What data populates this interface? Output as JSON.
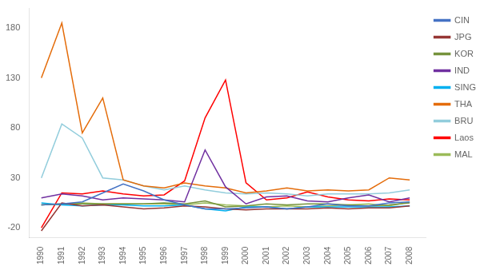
{
  "chart_data": {
    "type": "line",
    "x": [
      1990,
      1991,
      1992,
      1993,
      1994,
      1995,
      1996,
      1997,
      1998,
      1999,
      2000,
      2001,
      2002,
      2003,
      2004,
      2005,
      2006,
      2007,
      2008
    ],
    "series": [
      {
        "name": "CIN",
        "color": "#4472C4",
        "values": [
          3,
          4,
          6,
          15,
          24,
          17,
          8,
          3,
          -1,
          -1,
          0,
          1,
          -1,
          1,
          4,
          2,
          2,
          5,
          6
        ]
      },
      {
        "name": "JPG",
        "color": "#963634",
        "values": [
          -23,
          5,
          2,
          3,
          1,
          -1,
          0,
          2,
          1,
          -1,
          -2,
          -1,
          -1,
          -1,
          0,
          -1,
          0,
          0,
          2
        ]
      },
      {
        "name": "KOR",
        "color": "#76933C",
        "values": [
          3,
          4,
          4,
          4,
          4,
          4,
          5,
          4,
          7,
          1,
          2,
          4,
          3,
          4,
          4,
          3,
          2,
          3,
          5
        ]
      },
      {
        "name": "IND",
        "color": "#7030A0",
        "values": [
          10,
          14,
          12,
          8,
          10,
          9,
          8,
          6,
          58,
          21,
          4,
          11,
          12,
          7,
          6,
          10,
          13,
          6,
          10
        ]
      },
      {
        "name": "SING",
        "color": "#00B0F0",
        "values": [
          5,
          3,
          2,
          3,
          3,
          2,
          2,
          3,
          -1,
          -3,
          1,
          1,
          -1,
          1,
          1,
          1,
          1,
          1,
          2
        ]
      },
      {
        "name": "THA",
        "color": "#E46C0A",
        "values": [
          130,
          185,
          75,
          110,
          28,
          22,
          20,
          25,
          22,
          20,
          15,
          17,
          20,
          17,
          18,
          17,
          18,
          30,
          28
        ]
      },
      {
        "name": "BRU",
        "color": "#92CDDC",
        "values": [
          30,
          84,
          70,
          30,
          28,
          22,
          18,
          22,
          18,
          15,
          14,
          15,
          14,
          12,
          14,
          14,
          14,
          15,
          18
        ]
      },
      {
        "name": "Laos",
        "color": "#FF0000",
        "values": [
          -20,
          15,
          14,
          17,
          14,
          12,
          13,
          27,
          90,
          128,
          25,
          8,
          10,
          16,
          11,
          8,
          7,
          9,
          8
        ]
      },
      {
        "name": "MAL",
        "color": "#9BBB59",
        "values": [
          3,
          4,
          5,
          4,
          4,
          4,
          4,
          3,
          5,
          3,
          2,
          1,
          2,
          1,
          2,
          3,
          4,
          2,
          6
        ]
      }
    ],
    "xlim": [
      1989.4,
      2008.8
    ],
    "xticks": [
      1990,
      1991,
      1992,
      1993,
      1994,
      1995,
      1996,
      1997,
      1998,
      1999,
      2000,
      2001,
      2002,
      2003,
      2004,
      2005,
      2006,
      2007,
      2008
    ],
    "ylim": [
      -30,
      200
    ],
    "yticks": [
      -20,
      30,
      80,
      130,
      180
    ],
    "grid": false,
    "legend": "right"
  }
}
